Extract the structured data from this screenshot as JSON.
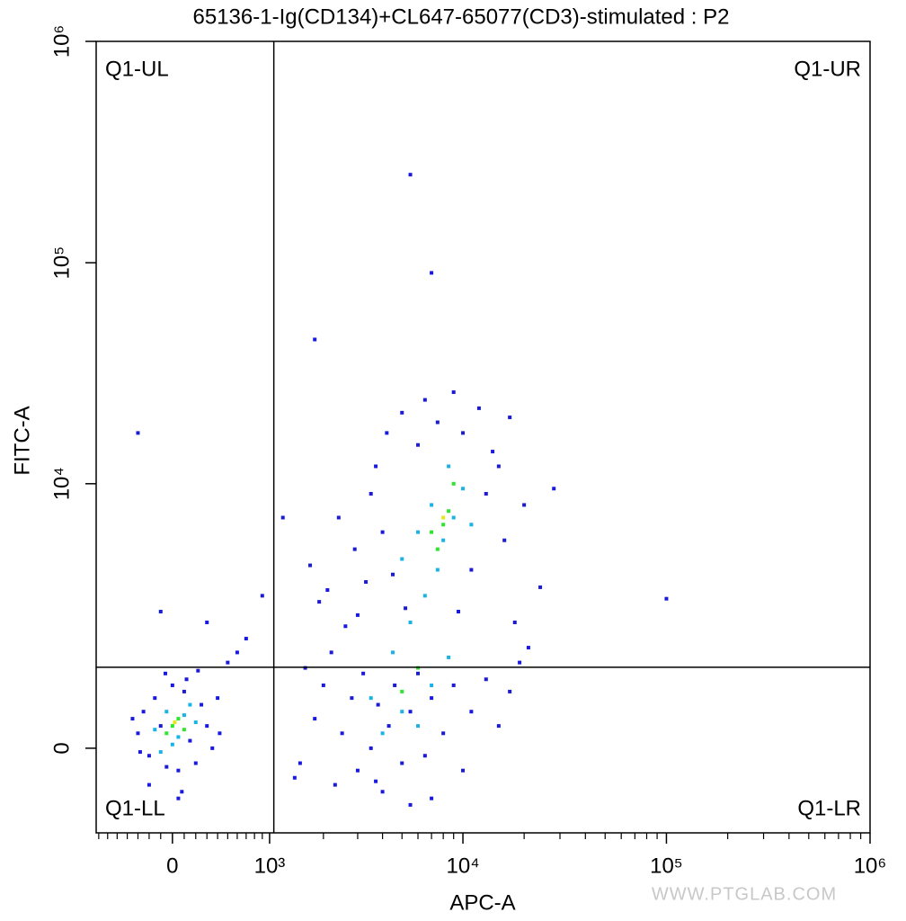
{
  "chart_data": {
    "type": "scatter",
    "title": "65136-1-Ig(CD134)+CL647-65077(CD3)-stimulated : P2",
    "x_label": "APC-A",
    "y_label": "FITC-A",
    "watermark": "WWW.PTGLAB.COM",
    "xscale": "asinh",
    "xscale_cofactor": 750,
    "yscale": "asinh",
    "yscale_cofactor": 1282,
    "xlim": [
      -730,
      1000000
    ],
    "ylim": [
      -1280,
      1000000
    ],
    "xticks": [
      0,
      {
        "value": 1000,
        "label": "10³"
      },
      {
        "value": 10000,
        "label": "10⁴"
      },
      {
        "value": 100000,
        "label": "10⁵"
      },
      {
        "value": 1000000,
        "label": "10⁶"
      }
    ],
    "yticks": [
      0,
      {
        "value": 10000,
        "label": "10⁴"
      },
      {
        "value": 100000,
        "label": "10⁵"
      },
      {
        "value": 1000000,
        "label": "10⁶"
      }
    ],
    "xminor_ticks": [
      -700,
      -600,
      -500,
      -400,
      -300,
      -200,
      -100,
      100,
      200,
      300,
      400,
      500,
      600,
      700,
      800,
      900,
      2000,
      3000,
      4000,
      5000,
      6000,
      7000,
      8000,
      9000,
      20000,
      30000,
      40000,
      50000,
      60000,
      70000,
      80000,
      90000,
      200000,
      300000,
      400000,
      500000,
      600000,
      700000,
      800000,
      900000
    ],
    "quadrant": {
      "x": 1061,
      "y": 1213,
      "labels": [
        "Q1-UL",
        "Q1-UR",
        "Q1-LL",
        "Q1-LR"
      ]
    },
    "series": [
      {
        "color": "#1a1adb",
        "x": [
          -300,
          -250,
          -200,
          -150,
          -100,
          -50,
          0,
          50,
          100,
          150,
          200,
          250,
          300,
          350,
          400,
          -280,
          120,
          -60,
          220,
          500,
          700,
          300,
          -100,
          900,
          600,
          -200,
          50,
          80,
          420,
          -350,
          1500,
          1800,
          2000,
          2300,
          2500,
          2800,
          3000,
          3200,
          3500,
          3800,
          4000,
          4300,
          4600,
          5000,
          5500,
          6000,
          6500,
          7000,
          8000,
          9000,
          10000,
          11000,
          13000,
          15000,
          17000,
          1600,
          2200,
          2600,
          1900,
          3300,
          2900,
          2400,
          1700,
          2100,
          3000,
          19000,
          21000,
          18000,
          24000,
          16000,
          20000,
          14000,
          17000,
          12000,
          9000,
          6500,
          5000,
          4200,
          3700,
          3500,
          4000,
          4500,
          5200,
          6000,
          7500,
          10000,
          13000,
          15000,
          11000,
          9500,
          28000,
          1200,
          1400,
          7000,
          3700,
          5500,
          5500,
          7000,
          1800,
          100000,
          -300
        ],
        "y": [
          200,
          500,
          -100,
          700,
          300,
          -250,
          900,
          -300,
          800,
          100,
          -200,
          600,
          300,
          0,
          700,
          -50,
          1000,
          1100,
          1150,
          1300,
          1800,
          2200,
          2500,
          3000,
          1500,
          -500,
          -700,
          -600,
          200,
          400,
          -200,
          400,
          900,
          -500,
          200,
          700,
          -300,
          1100,
          0,
          600,
          -600,
          300,
          900,
          -200,
          500,
          1100,
          -100,
          700,
          200,
          900,
          -300,
          500,
          1000,
          300,
          800,
          1200,
          1500,
          2100,
          2800,
          3500,
          5000,
          7000,
          4200,
          3200,
          2400,
          1300,
          1600,
          2200,
          3300,
          5500,
          8000,
          14000,
          20000,
          22000,
          26000,
          24000,
          21000,
          17000,
          12000,
          9000,
          6000,
          3800,
          2600,
          15000,
          19000,
          17000,
          9000,
          12000,
          4000,
          2500,
          9500,
          7000,
          -400,
          -700,
          -450,
          -800,
          250000,
          90000,
          45000,
          2900,
          17000
        ]
      },
      {
        "color": "#19b3e6",
        "x": [
          -150,
          -50,
          50,
          100,
          150,
          0,
          -100,
          200,
          4000,
          5000,
          6000,
          7000,
          4500,
          5500,
          6500,
          7500,
          8000,
          9000,
          7000,
          10000,
          8500,
          6000,
          3500,
          8500,
          11000,
          5000
        ],
        "y": [
          250,
          500,
          150,
          450,
          600,
          50,
          -50,
          350,
          200,
          500,
          300,
          900,
          1500,
          2200,
          3000,
          4000,
          5500,
          7000,
          8000,
          9500,
          12000,
          6000,
          700,
          1400,
          6500,
          4500
        ]
      },
      {
        "color": "#2ee62e",
        "x": [
          0,
          50,
          -50,
          100,
          7000,
          8000,
          8500,
          7500,
          6000,
          5000,
          9000
        ],
        "y": [
          300,
          400,
          200,
          250,
          6000,
          6500,
          7500,
          5000,
          1200,
          800,
          10000
        ]
      },
      {
        "color": "#e6e619",
        "x": [
          20,
          8000
        ],
        "y": [
          350,
          7000
        ]
      }
    ]
  }
}
